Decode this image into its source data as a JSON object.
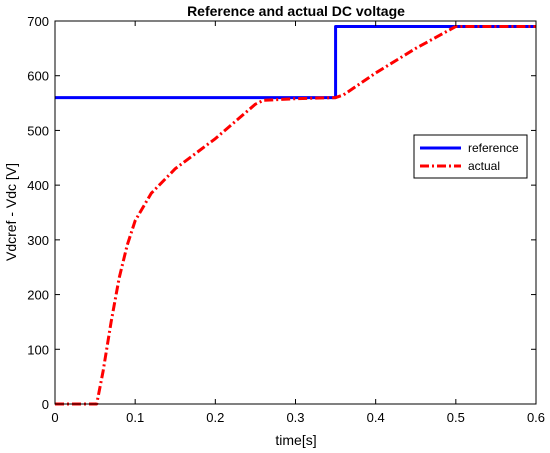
{
  "chart_data": {
    "type": "line",
    "title": "Reference and actual DC voltage",
    "xlabel": "time[s]",
    "ylabel": "Vdcref - Vdc [V]",
    "xlim": [
      0,
      0.6
    ],
    "ylim": [
      0,
      700
    ],
    "xticks": [
      "0",
      "0.1",
      "0.2",
      "0.3",
      "0.4",
      "0.5",
      "0.6"
    ],
    "yticks": [
      "0",
      "100",
      "200",
      "300",
      "400",
      "500",
      "600",
      "700"
    ],
    "grid": false,
    "legend_position": "right",
    "series": [
      {
        "name": "reference",
        "color": "#0000ff",
        "style": "solid",
        "points": [
          [
            0,
            560
          ],
          [
            0.35,
            560
          ],
          [
            0.35,
            690
          ],
          [
            0.6,
            690
          ]
        ]
      },
      {
        "name": "actual",
        "color": "#ff0000",
        "style": "dash-dot",
        "points": [
          [
            0,
            0
          ],
          [
            0.052,
            0
          ],
          [
            0.06,
            60
          ],
          [
            0.07,
            150
          ],
          [
            0.08,
            230
          ],
          [
            0.09,
            290
          ],
          [
            0.1,
            335
          ],
          [
            0.12,
            385
          ],
          [
            0.15,
            430
          ],
          [
            0.2,
            485
          ],
          [
            0.25,
            548
          ],
          [
            0.26,
            555
          ],
          [
            0.3,
            558
          ],
          [
            0.35,
            560
          ],
          [
            0.36,
            565
          ],
          [
            0.4,
            605
          ],
          [
            0.45,
            650
          ],
          [
            0.5,
            690
          ],
          [
            0.6,
            690
          ]
        ]
      }
    ]
  }
}
